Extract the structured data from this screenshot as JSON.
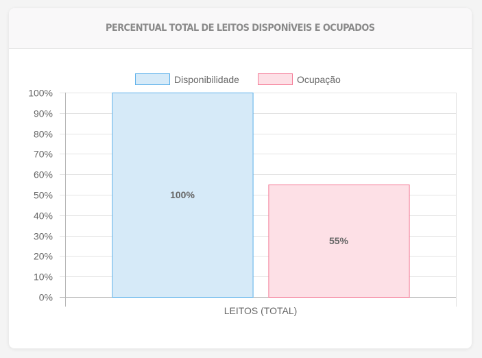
{
  "card": {
    "title": "PERCENTUAL TOTAL DE LEITOS DISPONÍVEIS E OCUPADOS"
  },
  "chart_data": {
    "type": "bar",
    "title": "PERCENTUAL TOTAL DE LEITOS DISPONÍVEIS E OCUPADOS",
    "categories": [
      "LEITOS (TOTAL)"
    ],
    "series": [
      {
        "name": "Disponibilidade",
        "values": [
          100
        ],
        "label": "100%",
        "fill": "#d6eaf8",
        "stroke": "#5bb0ea"
      },
      {
        "name": "Ocupação",
        "values": [
          55
        ],
        "label": "55%",
        "fill": "#fde0e6",
        "stroke": "#f47a96"
      }
    ],
    "ylim": [
      0,
      100
    ],
    "yticks": [
      "0%",
      "10%",
      "20%",
      "30%",
      "40%",
      "50%",
      "60%",
      "70%",
      "80%",
      "90%",
      "100%"
    ],
    "xlabel": "",
    "ylabel": "",
    "grid": true,
    "legend": "top-center"
  }
}
